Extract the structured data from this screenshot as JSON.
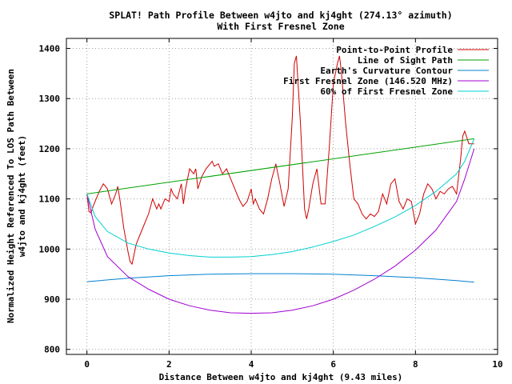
{
  "chart_data": {
    "type": "line",
    "title": "SPLAT! Path Profile Between w4jto and kj4ght (274.13° azimuth)",
    "subtitle": "With First Fresnel Zone",
    "xlabel": "Distance Between w4jto and kj4ght (9.43 miles)",
    "ylabel_line1": "Normalized Height Referenced To LOS Path Between",
    "ylabel_line2": "w4jto and kj4ght (feet)",
    "xlim": [
      -0.5,
      10
    ],
    "ylim": [
      790,
      1420
    ],
    "x_ticks": [
      0,
      2,
      4,
      6,
      8,
      10
    ],
    "y_ticks": [
      800,
      900,
      1000,
      1100,
      1200,
      1300,
      1400
    ],
    "grid": true,
    "legend_position": "top-right",
    "series": [
      {
        "name": "Point-to-Point Profile",
        "color": "#d00000",
        "x": [
          0,
          0.05,
          0.1,
          0.15,
          0.2,
          0.3,
          0.4,
          0.5,
          0.6,
          0.7,
          0.75,
          0.8,
          0.9,
          1.0,
          1.05,
          1.1,
          1.15,
          1.2,
          1.3,
          1.4,
          1.5,
          1.6,
          1.7,
          1.75,
          1.8,
          1.9,
          2.0,
          2.05,
          2.1,
          2.2,
          2.3,
          2.35,
          2.4,
          2.5,
          2.6,
          2.65,
          2.7,
          2.8,
          2.9,
          3.0,
          3.05,
          3.1,
          3.2,
          3.3,
          3.4,
          3.5,
          3.6,
          3.7,
          3.8,
          3.9,
          4.0,
          4.05,
          4.1,
          4.2,
          4.3,
          4.4,
          4.5,
          4.6,
          4.7,
          4.8,
          4.9,
          5.0,
          5.05,
          5.1,
          5.2,
          5.3,
          5.35,
          5.4,
          5.5,
          5.6,
          5.7,
          5.8,
          5.9,
          6.0,
          6.1,
          6.15,
          6.2,
          6.3,
          6.4,
          6.5,
          6.6,
          6.7,
          6.8,
          6.9,
          7.0,
          7.1,
          7.2,
          7.3,
          7.4,
          7.5,
          7.6,
          7.7,
          7.8,
          7.9,
          8.0,
          8.1,
          8.2,
          8.3,
          8.4,
          8.5,
          8.6,
          8.7,
          8.8,
          8.9,
          9.0,
          9.1,
          9.15,
          9.2,
          9.3,
          9.43
        ],
        "values": [
          1110,
          1075,
          1072,
          1085,
          1095,
          1115,
          1130,
          1120,
          1090,
          1110,
          1125,
          1100,
          1040,
          995,
          975,
          970,
          990,
          1010,
          1030,
          1050,
          1070,
          1100,
          1080,
          1090,
          1080,
          1100,
          1095,
          1120,
          1110,
          1100,
          1130,
          1090,
          1120,
          1160,
          1150,
          1160,
          1120,
          1145,
          1160,
          1170,
          1175,
          1165,
          1170,
          1150,
          1160,
          1140,
          1120,
          1100,
          1085,
          1095,
          1120,
          1090,
          1100,
          1080,
          1070,
          1100,
          1140,
          1170,
          1130,
          1085,
          1120,
          1260,
          1370,
          1385,
          1250,
          1080,
          1060,
          1080,
          1130,
          1160,
          1090,
          1090,
          1200,
          1330,
          1370,
          1385,
          1350,
          1250,
          1170,
          1100,
          1090,
          1070,
          1060,
          1070,
          1065,
          1075,
          1110,
          1090,
          1130,
          1140,
          1095,
          1080,
          1100,
          1095,
          1050,
          1070,
          1110,
          1130,
          1120,
          1100,
          1115,
          1110,
          1120,
          1125,
          1110,
          1180,
          1225,
          1235,
          1210,
          1210
        ]
      },
      {
        "name": "Line of Sight Path",
        "color": "#00a000",
        "x": [
          0,
          9.43
        ],
        "values": [
          1110,
          1220
        ]
      },
      {
        "name": "Earth's Curvature Contour",
        "color": "#0080d0",
        "x": [
          0,
          1,
          2,
          3,
          4,
          5,
          6,
          7,
          8,
          9,
          9.43
        ],
        "values": [
          935,
          942,
          947,
          950,
          951,
          951,
          950,
          947,
          943,
          937,
          934
        ]
      },
      {
        "name": "First Fresnel Zone (146.520 MHz)",
        "color": "#a000d0",
        "x": [
          0,
          0.2,
          0.5,
          1,
          1.5,
          2,
          2.5,
          3,
          3.5,
          4,
          4.5,
          5,
          5.5,
          6,
          6.5,
          7,
          7.5,
          8,
          8.5,
          9,
          9.2,
          9.43
        ],
        "values": [
          1110,
          1040,
          985,
          945,
          920,
          900,
          887,
          878,
          873,
          872,
          873,
          878,
          887,
          900,
          918,
          940,
          966,
          998,
          1038,
          1095,
          1140,
          1200
        ]
      },
      {
        "name": "60% of First Fresnel Zone",
        "color": "#00d0d0",
        "x": [
          0,
          0.2,
          0.5,
          1,
          1.5,
          2,
          2.5,
          3,
          3.5,
          4,
          4.5,
          5,
          5.5,
          6,
          6.5,
          7,
          7.5,
          8,
          8.5,
          9,
          9.2,
          9.43
        ],
        "values": [
          1110,
          1065,
          1035,
          1012,
          1000,
          992,
          987,
          984,
          984,
          985,
          989,
          995,
          1004,
          1015,
          1028,
          1045,
          1064,
          1087,
          1115,
          1150,
          1175,
          1220
        ]
      }
    ]
  }
}
